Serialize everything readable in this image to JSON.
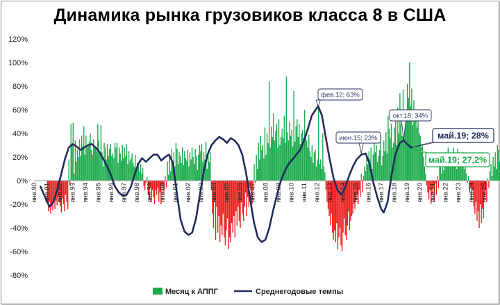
{
  "chart_data": {
    "type": "bar+line",
    "title": "Динамика рынка грузовиков класса 8 в США",
    "xlabel": "",
    "ylabel": "",
    "ylim": [
      -80,
      120
    ],
    "y_ticks": [
      "120%",
      "100%",
      "80%",
      "60%",
      "40%",
      "20%",
      "0%",
      "-20%",
      "-40%",
      "-60%",
      "-80%"
    ],
    "y_tick_values": [
      120,
      100,
      80,
      60,
      40,
      20,
      0,
      -20,
      -40,
      -60,
      -80
    ],
    "x_ticks": [
      "янв.90",
      "янв.91",
      "янв.92",
      "янв.93",
      "янв.94",
      "янв.95",
      "янв.96",
      "янв.97",
      "янв.98",
      "янв.99",
      "янв.00",
      "янв.01",
      "янв.02",
      "янв.03",
      "янв.04",
      "янв.05",
      "янв.06",
      "янв.07",
      "янв.08",
      "янв.09",
      "янв.10",
      "янв.11",
      "янв.12",
      "янв.13",
      "янв.14",
      "янв.15",
      "янв.16",
      "янв.17",
      "янв.18",
      "янв.19",
      "янв.20",
      "янв.21",
      "янв.22",
      "янв.23",
      "янв.24",
      "янв.25"
    ],
    "x_tick_years": [
      1990,
      1991,
      1992,
      1993,
      1994,
      1995,
      1996,
      1997,
      1998,
      1999,
      2000,
      2001,
      2002,
      2003,
      2004,
      2005,
      2006,
      2007,
      2008,
      2009,
      2010,
      2011,
      2012,
      2013,
      2014,
      2015,
      2016,
      2017,
      2018,
      2019,
      2020,
      2021,
      2022,
      2023,
      2024,
      2025
    ],
    "grid": false,
    "legend_position": "bottom",
    "colors": {
      "positive_bars": "#1aab4b",
      "negative_bars": "#ee1c1c",
      "line": "#1f2d5c",
      "last_bar_label": "#1aab4b"
    },
    "series": [
      {
        "name": "Месяц к АППГ",
        "type": "bar",
        "x_start": "янв.91",
        "values": [
          -20,
          -26,
          -18,
          -28,
          -22,
          -25,
          -19,
          -24,
          -17,
          -21,
          -14,
          -18,
          -22,
          -27,
          -15,
          -20,
          -26,
          -12,
          -18,
          -24,
          18,
          -4,
          48,
          30,
          49,
          6,
          34,
          16,
          26,
          20,
          35,
          21,
          38,
          29,
          46,
          22,
          38,
          28,
          31,
          33,
          40,
          26,
          22,
          35,
          29,
          28,
          25,
          48,
          34,
          24,
          47,
          24,
          12,
          32,
          28,
          18,
          31,
          21,
          27,
          31,
          21,
          23,
          19,
          32,
          28,
          32,
          15,
          28,
          23,
          17,
          30,
          19,
          28,
          21,
          31,
          14,
          25,
          17,
          19,
          23,
          15,
          12,
          22,
          9,
          15,
          12,
          8,
          14,
          6,
          11,
          -4,
          -8,
          -2,
          3,
          -12,
          -16,
          -6,
          -18,
          -8,
          -14,
          -20,
          -8,
          -12,
          -6,
          -18,
          -10,
          -20,
          -4,
          -12,
          -8,
          4,
          -6,
          16,
          5,
          20,
          8,
          27,
          16,
          24,
          12,
          32,
          27,
          14,
          24,
          21,
          15,
          28,
          13,
          25,
          19,
          17,
          26,
          12,
          24,
          18,
          28,
          20,
          14,
          27,
          21,
          9,
          22,
          30,
          25,
          31,
          16,
          24,
          18,
          33,
          10,
          22,
          16,
          24,
          -8,
          -28,
          -40,
          -18,
          -50,
          -22,
          -44,
          -30,
          -52,
          -38,
          -46,
          -28,
          -48,
          -55,
          -42,
          -32,
          -58,
          -48,
          -52,
          -36,
          -44,
          -30,
          -48,
          -26,
          -38,
          -22,
          -34,
          -40,
          -18,
          -28,
          -34,
          -22,
          -10,
          -30,
          -14,
          -22,
          -6,
          -16,
          -20,
          -8,
          14,
          -2,
          22,
          10,
          32,
          18,
          38,
          26,
          30,
          19,
          45,
          22,
          40,
          32,
          84,
          28,
          46,
          37,
          57,
          34,
          42,
          48,
          28,
          52,
          30,
          37,
          44,
          36,
          55,
          32,
          88,
          41,
          34,
          50,
          38,
          43,
          29,
          76,
          33,
          46,
          52,
          37,
          48,
          31,
          40,
          43,
          36,
          60,
          40,
          34,
          28,
          39,
          25,
          20,
          30,
          15,
          24,
          26,
          12,
          18,
          70,
          14,
          18,
          10,
          40,
          12,
          7,
          -8,
          -18,
          -24,
          -30,
          -38,
          -28,
          -44,
          -50,
          -42,
          -52,
          -36,
          -58,
          -48,
          -40,
          -55,
          -60,
          -44,
          -32,
          -46,
          -50,
          -38,
          -26,
          -42,
          -34,
          -30,
          -28,
          -20,
          -24,
          -16,
          -12,
          -20,
          -8,
          -14,
          6,
          -10,
          4,
          12,
          8,
          20,
          14,
          25,
          18,
          28,
          10,
          22,
          32,
          24,
          30,
          16,
          21,
          26,
          38,
          13,
          21,
          34,
          25,
          41,
          23,
          55,
          44,
          36,
          48,
          28,
          32,
          45,
          58,
          30,
          62,
          40,
          74,
          48,
          38,
          77,
          42,
          59,
          52,
          82,
          70,
          100,
          63,
          78,
          47,
          68,
          52,
          60,
          45,
          55,
          40,
          38,
          28,
          30,
          20,
          12,
          6,
          -4,
          -10,
          -16,
          -8,
          -20,
          -12,
          -6,
          -18,
          -2,
          -12,
          4,
          -6,
          12,
          20,
          6,
          18,
          9,
          16,
          24,
          12,
          28,
          14,
          22,
          19,
          21,
          28,
          17,
          20,
          10,
          27,
          23,
          21,
          12,
          18,
          24,
          10,
          16,
          6,
          -2,
          4,
          -10,
          -6,
          -16,
          -8,
          -22,
          -28,
          -18,
          -34,
          -26,
          -40,
          -20,
          -36,
          -24,
          -32,
          -14,
          -8,
          -18,
          2,
          -6,
          8,
          14,
          4,
          20,
          12,
          24,
          10,
          30,
          26,
          16,
          34,
          22,
          38,
          18,
          40,
          28,
          44,
          24,
          36,
          32,
          39,
          28,
          30,
          27.2
        ]
      },
      {
        "name": "Среднегодовые темпы",
        "type": "line",
        "x": [
          1990.5,
          1990.9,
          1991.2,
          1991.5,
          1991.8,
          1992.1,
          1992.4,
          1992.7,
          1993.0,
          1993.3,
          1993.6,
          1993.9,
          1994.2,
          1994.5,
          1994.8,
          1995.1,
          1995.4,
          1995.7,
          1996.0,
          1996.3,
          1996.6,
          1996.9,
          1997.2,
          1997.5,
          1997.8,
          1998.1,
          1998.4,
          1998.7,
          1999.0,
          1999.3,
          1999.6,
          1999.9,
          2000.2,
          2000.5,
          2000.8,
          2001.1,
          2001.4,
          2001.7,
          2002.0,
          2002.3,
          2002.6,
          2002.9,
          2003.2,
          2003.5,
          2003.8,
          2004.1,
          2004.4,
          2004.7,
          2005.0,
          2005.3,
          2005.6,
          2005.9,
          2006.2,
          2006.5,
          2006.8,
          2007.1,
          2007.4,
          2007.7,
          2008.0,
          2008.3,
          2008.6,
          2008.9,
          2009.2,
          2009.5,
          2009.8,
          2010.1,
          2010.4,
          2010.7,
          2011.0,
          2011.3,
          2011.6,
          2011.9,
          2012.1,
          2012.4,
          2012.7,
          2013.0,
          2013.3,
          2013.6,
          2013.9,
          2014.2,
          2014.5,
          2014.8,
          2015.1,
          2015.45,
          2015.8,
          2016.1,
          2016.4,
          2016.7,
          2017.0,
          2017.2,
          2017.5,
          2017.8,
          2018.1,
          2018.45,
          2018.75,
          2019.0,
          2019.35
        ],
        "y": [
          -5,
          -15,
          -22,
          -18,
          -8,
          5,
          18,
          28,
          31,
          29,
          26,
          28,
          30,
          31,
          28,
          24,
          18,
          12,
          4,
          -5,
          -10,
          -13,
          -12,
          -6,
          4,
          14,
          19,
          16,
          19,
          22,
          22,
          17,
          20,
          22,
          15,
          -10,
          -33,
          -43,
          -46,
          -44,
          -32,
          -12,
          8,
          22,
          30,
          34,
          37,
          35,
          32,
          36,
          34,
          30,
          22,
          6,
          -15,
          -35,
          -48,
          -52,
          -50,
          -40,
          -25,
          -12,
          0,
          8,
          14,
          18,
          22,
          26,
          34,
          44,
          55,
          60,
          63,
          55,
          36,
          18,
          2,
          -8,
          -12,
          -6,
          4,
          12,
          18,
          22,
          23,
          14,
          -2,
          -14,
          -24,
          -27,
          -18,
          4,
          22,
          32,
          34,
          31,
          28
        ]
      }
    ],
    "annotations": [
      {
        "text": "фев.12; 63%",
        "color": "#1f2d5c"
      },
      {
        "text": "июн.15; 23%",
        "color": "#1f2d5c"
      },
      {
        "text": "окт.18; 34%",
        "color": "#1f2d5c"
      },
      {
        "text": "май.19; 28%",
        "color": "#1f2d5c"
      },
      {
        "text": "май.19; 27,2%",
        "color": "#1aab4b"
      }
    ],
    "legend": [
      "Месяц к АППГ",
      "Среднегодовые темпы"
    ]
  }
}
